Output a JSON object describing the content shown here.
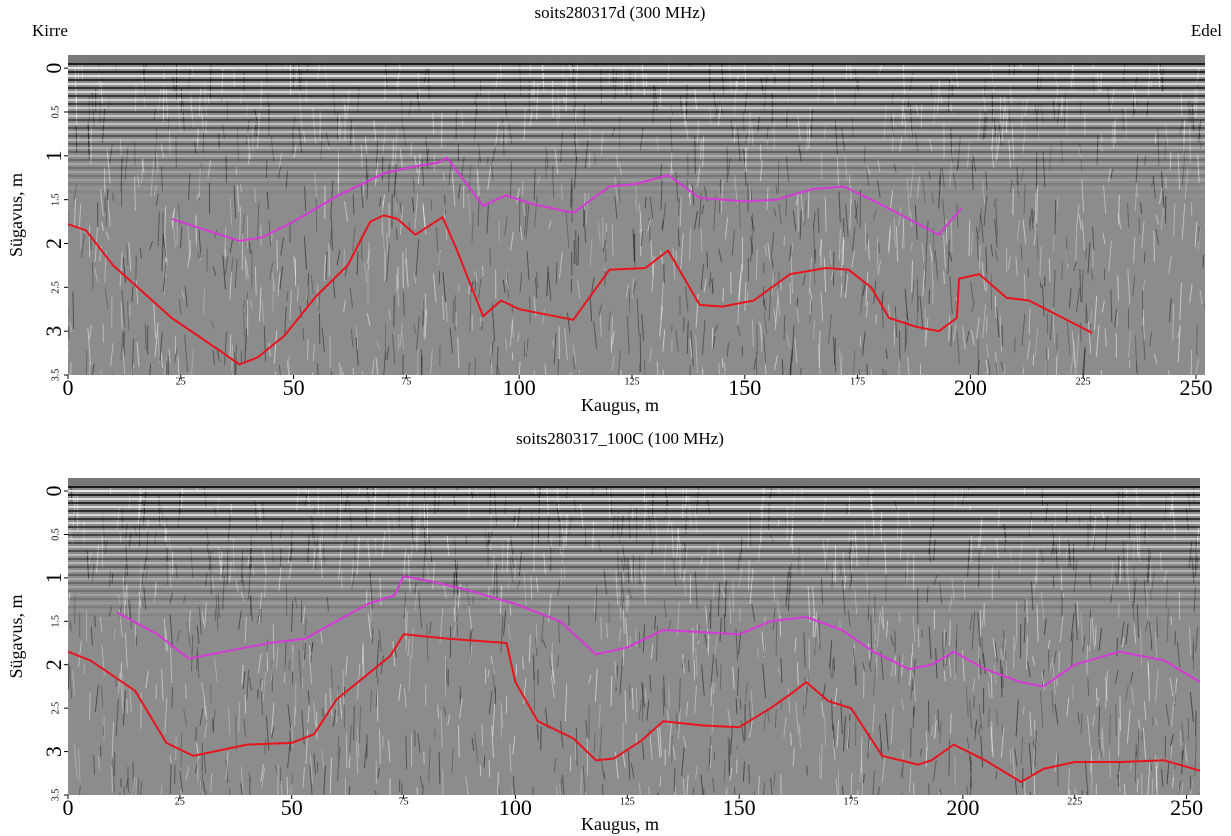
{
  "chart_data": [
    {
      "type": "line",
      "title": "soits280317d (300 MHz)",
      "annotations": [
        "Kirre",
        "Edel"
      ],
      "xlabel": "Kaugus, m",
      "ylabel": "Sügavus, m",
      "xlim": [
        0,
        252
      ],
      "ylim": [
        -0.15,
        3.5
      ],
      "xticks": [
        0,
        25,
        50,
        75,
        100,
        125,
        150,
        175,
        200,
        225,
        250
      ],
      "yticks": [
        0,
        0.5,
        1,
        1.5,
        2,
        2.5,
        3,
        3.5
      ],
      "series": [
        {
          "color": "#d63ad6",
          "x": [
            23,
            38,
            43,
            50,
            60,
            70,
            77,
            82,
            84,
            92,
            97,
            103,
            112,
            120,
            126,
            133,
            140,
            150,
            157,
            165,
            172,
            180,
            193,
            198
          ],
          "values": [
            1.72,
            1.97,
            1.93,
            1.75,
            1.45,
            1.2,
            1.12,
            1.08,
            1.02,
            1.57,
            1.45,
            1.55,
            1.65,
            1.35,
            1.32,
            1.22,
            1.48,
            1.52,
            1.5,
            1.38,
            1.35,
            1.55,
            1.9,
            1.6
          ]
        },
        {
          "color": "#e8141e",
          "x": [
            0,
            4,
            10,
            23,
            33,
            38,
            42,
            48,
            55,
            62,
            67,
            70,
            73,
            77,
            83,
            86,
            92,
            96,
            100,
            112,
            120,
            128,
            133,
            140,
            145,
            152,
            160,
            168,
            173,
            178,
            182,
            188,
            193,
            197,
            197.5,
            202,
            208,
            213,
            227
          ],
          "values": [
            1.78,
            1.85,
            2.25,
            2.85,
            3.2,
            3.38,
            3.3,
            3.05,
            2.6,
            2.25,
            1.75,
            1.68,
            1.72,
            1.9,
            1.7,
            2.05,
            2.83,
            2.65,
            2.75,
            2.87,
            2.3,
            2.28,
            2.08,
            2.7,
            2.72,
            2.65,
            2.35,
            2.28,
            2.3,
            2.5,
            2.85,
            2.95,
            3.0,
            2.85,
            2.4,
            2.35,
            2.62,
            2.65,
            3.02
          ]
        }
      ]
    },
    {
      "type": "line",
      "title": "soits280317_100C (100 MHz)",
      "xlabel": "Kaugus, m",
      "ylabel": "Sügavus, m",
      "xlim": [
        0,
        253
      ],
      "ylim": [
        -0.15,
        3.5
      ],
      "xticks": [
        0,
        25,
        50,
        75,
        100,
        125,
        150,
        175,
        200,
        225,
        250
      ],
      "yticks": [
        0,
        0.5,
        1,
        1.5,
        2,
        2.5,
        3,
        3.5
      ],
      "series": [
        {
          "color": "#d63ad6",
          "x": [
            11,
            20,
            27,
            35,
            45,
            53,
            60,
            67,
            73,
            75,
            82,
            90,
            100,
            110,
            118,
            125,
            133,
            140,
            150,
            157,
            165,
            173,
            180,
            188,
            193,
            198,
            205,
            213,
            218,
            225,
            235,
            245,
            253
          ],
          "values": [
            1.4,
            1.65,
            1.93,
            1.85,
            1.75,
            1.7,
            1.5,
            1.3,
            1.2,
            0.98,
            1.05,
            1.15,
            1.3,
            1.5,
            1.88,
            1.8,
            1.6,
            1.62,
            1.65,
            1.5,
            1.45,
            1.6,
            1.85,
            2.05,
            2.0,
            1.85,
            2.05,
            2.2,
            2.25,
            2.0,
            1.85,
            1.95,
            2.2
          ]
        },
        {
          "color": "#e8141e",
          "x": [
            0,
            5,
            15,
            22,
            28,
            40,
            50,
            55,
            60,
            66,
            72,
            75,
            85,
            98,
            100,
            105,
            113,
            118,
            122,
            128,
            133,
            142,
            150,
            157,
            162,
            165,
            170,
            175,
            182,
            190,
            193,
            198,
            205,
            213,
            218,
            225,
            235,
            245,
            253
          ],
          "values": [
            1.85,
            1.95,
            2.3,
            2.9,
            3.05,
            2.92,
            2.9,
            2.8,
            2.4,
            2.15,
            1.9,
            1.65,
            1.7,
            1.75,
            2.2,
            2.65,
            2.85,
            3.1,
            3.08,
            2.88,
            2.65,
            2.7,
            2.72,
            2.5,
            2.32,
            2.2,
            2.42,
            2.5,
            3.05,
            3.15,
            3.1,
            2.92,
            3.1,
            3.35,
            3.2,
            3.12,
            3.12,
            3.1,
            3.22
          ]
        }
      ]
    }
  ]
}
